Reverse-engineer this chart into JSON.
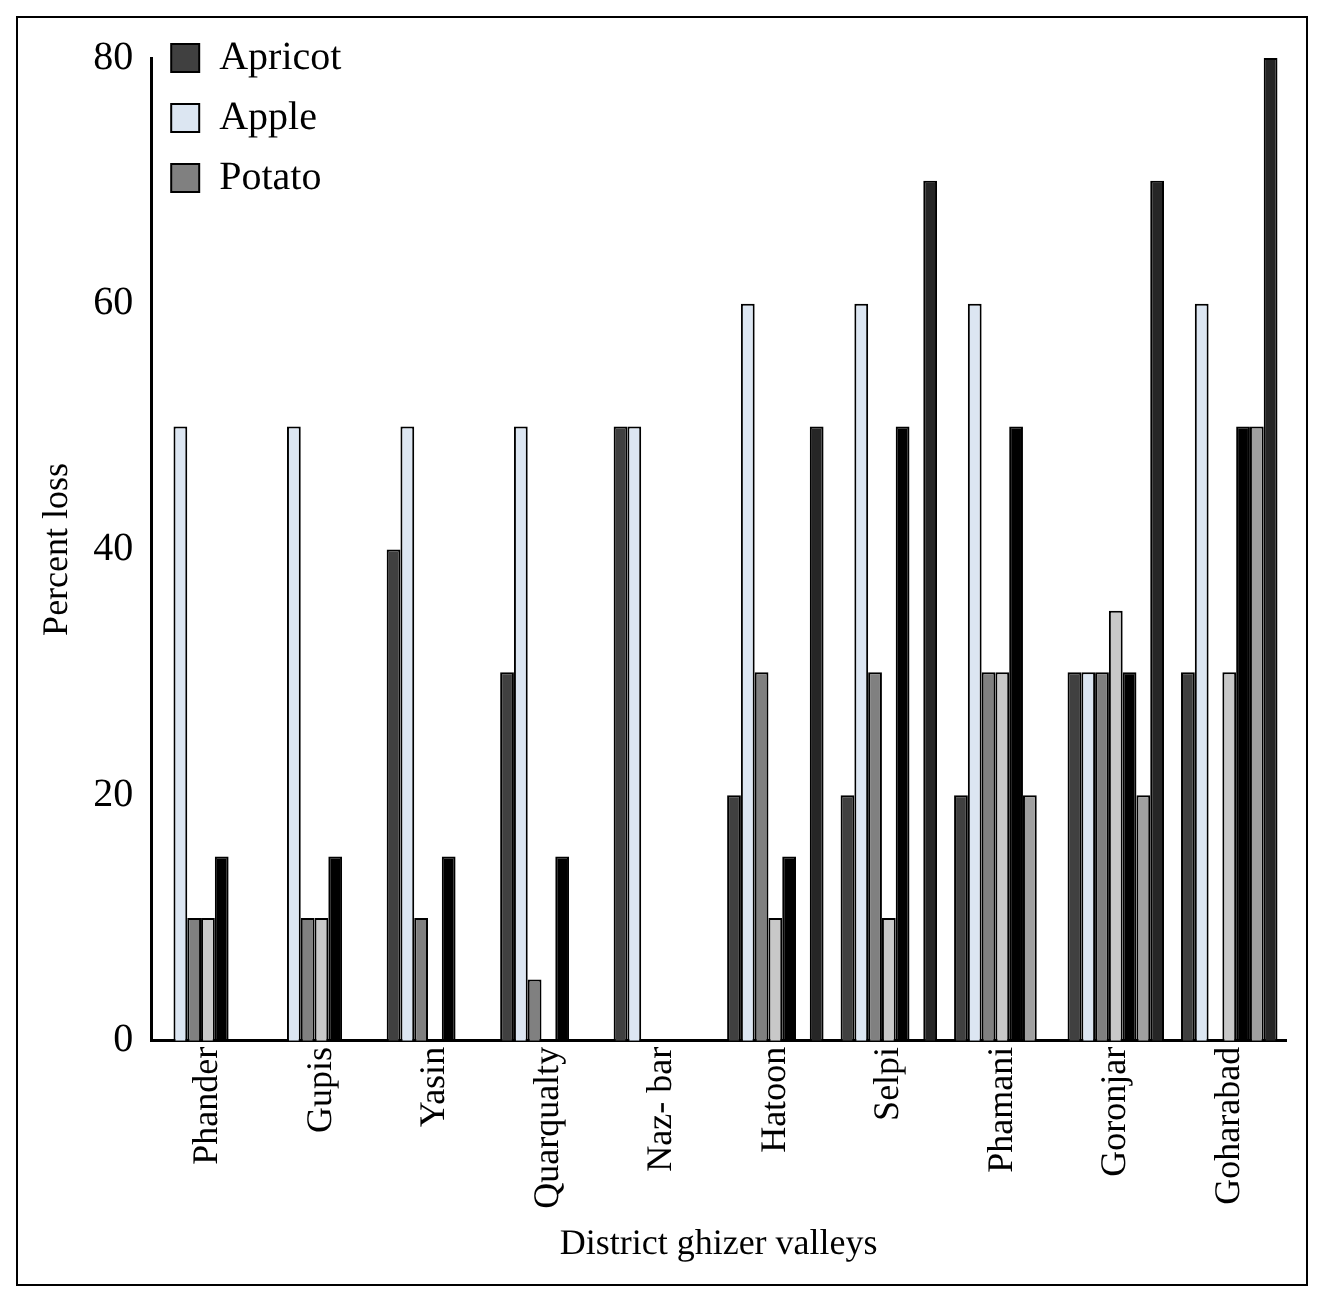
{
  "chart_data": {
    "type": "bar",
    "xlabel": "District ghizer valleys",
    "ylabel": "Percent loss",
    "categories": [
      "Phander",
      "Gupis",
      "Yasin",
      "Quarqualty",
      "Naz- bar",
      "Hatoon",
      "Selpi",
      "Phamani",
      "Goronjar",
      "Goharabad"
    ],
    "series": [
      {
        "name": "Apricot",
        "color": "#404040",
        "values": [
          0,
          0,
          40,
          30,
          50,
          20,
          20,
          20,
          30,
          30
        ]
      },
      {
        "name": "Apple",
        "color": "#dce6f2",
        "values": [
          50,
          50,
          50,
          50,
          50,
          60,
          60,
          60,
          30,
          60
        ]
      },
      {
        "name": "Potato",
        "color": "#808080",
        "values": [
          10,
          10,
          10,
          5,
          0,
          30,
          30,
          30,
          30,
          0
        ]
      },
      {
        "color": "#c8c8c8",
        "values": [
          10,
          10,
          0,
          0,
          0,
          10,
          10,
          30,
          35,
          30
        ]
      },
      {
        "color": "#000000",
        "values": [
          15,
          15,
          15,
          15,
          0,
          15,
          50,
          50,
          30,
          50
        ]
      },
      {
        "color": "#a0a0a0",
        "values": [
          0,
          0,
          0,
          0,
          0,
          0,
          0,
          20,
          20,
          50
        ]
      },
      {
        "color": "#262626",
        "values": [
          0,
          0,
          0,
          0,
          0,
          50,
          70,
          0,
          70,
          80
        ]
      }
    ],
    "ylim": [
      0,
      80
    ],
    "yticks": [
      0,
      20,
      40,
      60,
      80
    ],
    "grid": false,
    "legend": "top left"
  }
}
